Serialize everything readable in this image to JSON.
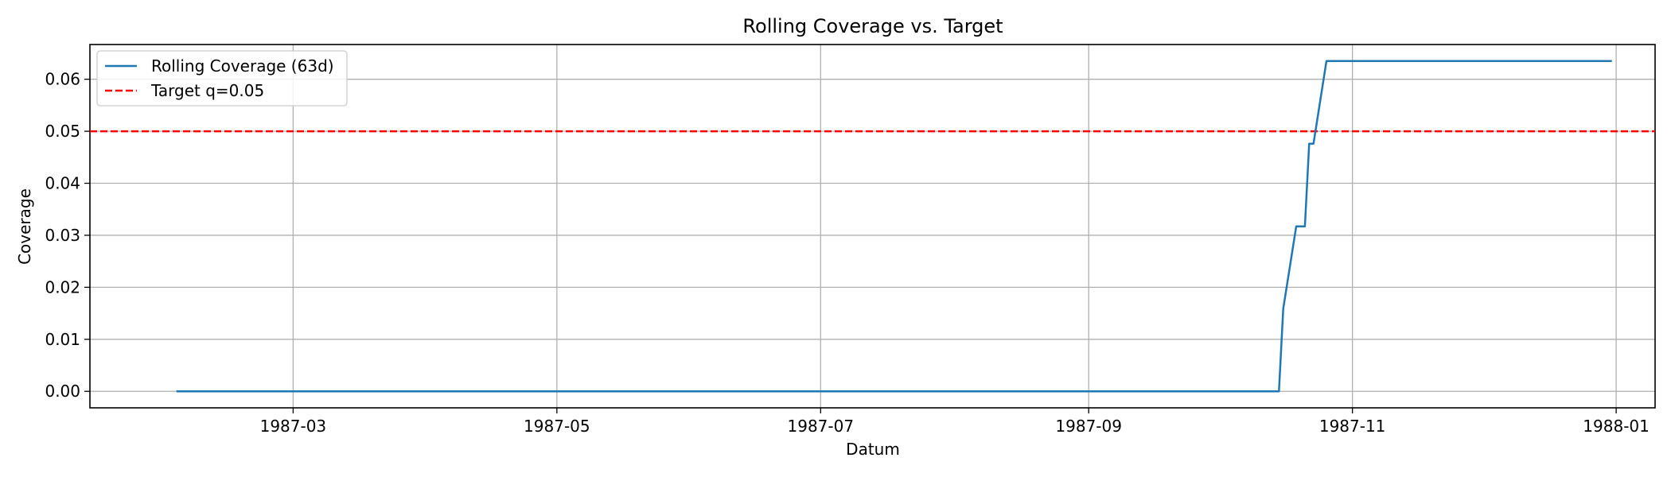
{
  "chart_data": {
    "type": "line",
    "title": "Rolling Coverage vs. Target",
    "xlabel": "Datum",
    "ylabel": "Coverage",
    "xlim": [
      "1987-01-13",
      "1988-01-10"
    ],
    "ylim": [
      -0.003175,
      0.066675
    ],
    "x_ticks": [
      "1987-03",
      "1987-05",
      "1987-07",
      "1987-09",
      "1987-11",
      "1988-01"
    ],
    "y_ticks": [
      "0.00",
      "0.01",
      "0.02",
      "0.03",
      "0.04",
      "0.05",
      "0.06"
    ],
    "grid": true,
    "legend_position": "top-left",
    "series": [
      {
        "name": "Rolling Coverage (63d)",
        "color": "#1f77b4",
        "style": "solid",
        "points": [
          {
            "x": "1987-02-02",
            "y": 0.0
          },
          {
            "x": "1987-10-15",
            "y": 0.0
          },
          {
            "x": "1987-10-16",
            "y": 0.0159
          },
          {
            "x": "1987-10-19",
            "y": 0.0317
          },
          {
            "x": "1987-10-21",
            "y": 0.0317
          },
          {
            "x": "1987-10-22",
            "y": 0.0476
          },
          {
            "x": "1987-10-23",
            "y": 0.0476
          },
          {
            "x": "1987-10-26",
            "y": 0.0635
          },
          {
            "x": "1987-12-31",
            "y": 0.0635
          }
        ]
      },
      {
        "name": "Target q=0.05",
        "color": "#ff0000",
        "style": "dashed",
        "hline": 0.05
      }
    ]
  }
}
